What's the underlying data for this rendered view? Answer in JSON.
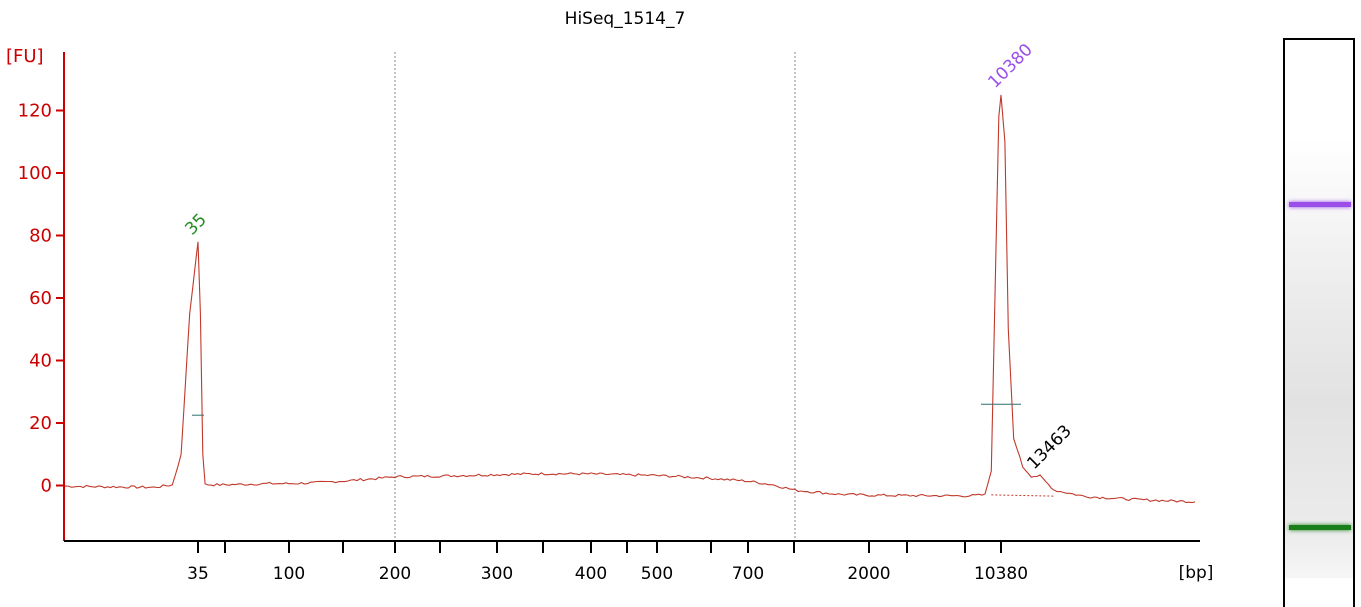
{
  "chart_data": {
    "type": "line",
    "title": "HiSeq_1514_7",
    "ylabel": "[FU]",
    "xlabel": "[bp]",
    "ylim": [
      -18,
      138
    ],
    "yticks": [
      0,
      20,
      40,
      60,
      80,
      100,
      120
    ],
    "xtick_labels": [
      "35",
      "100",
      "200",
      "300",
      "400",
      "500",
      "700",
      "2000",
      "10380"
    ],
    "minor_ticks_unlabeled": true,
    "grid_lines_at": [
      "200",
      "1000"
    ],
    "series": [
      {
        "points": [
          [
            22,
            -0.2
          ],
          [
            25,
            -0.4
          ],
          [
            28,
            -0.5
          ],
          [
            30,
            -0.6
          ],
          [
            32,
            0.2
          ],
          [
            33,
            10
          ],
          [
            34,
            55
          ],
          [
            35,
            78
          ],
          [
            36,
            55
          ],
          [
            37,
            10
          ],
          [
            38,
            0.3
          ],
          [
            45,
            0.2
          ],
          [
            60,
            0.4
          ],
          [
            80,
            0.6
          ],
          [
            100,
            0.6
          ],
          [
            120,
            0.9
          ],
          [
            150,
            1.6
          ],
          [
            180,
            2.3
          ],
          [
            200,
            2.8
          ],
          [
            250,
            3.1
          ],
          [
            300,
            3.5
          ],
          [
            350,
            3.8
          ],
          [
            400,
            3.7
          ],
          [
            450,
            3.4
          ],
          [
            500,
            3.2
          ],
          [
            600,
            2.4
          ],
          [
            700,
            1.4
          ],
          [
            850,
            0.2
          ],
          [
            1000,
            -1.5
          ],
          [
            1500,
            -2.8
          ],
          [
            2000,
            -3.1
          ],
          [
            3000,
            -3.2
          ],
          [
            5000,
            -3.3
          ],
          [
            7000,
            -3.3
          ],
          [
            8500,
            -3.0
          ],
          [
            9200,
            5
          ],
          [
            9700,
            70
          ],
          [
            10100,
            118
          ],
          [
            10380,
            125
          ],
          [
            10650,
            110
          ],
          [
            10900,
            50
          ],
          [
            11300,
            15
          ],
          [
            12000,
            6
          ],
          [
            12700,
            3
          ],
          [
            13463,
            3
          ],
          [
            14500,
            -1.5
          ],
          [
            17000,
            -3.5
          ],
          [
            22000,
            -4.5
          ],
          [
            30000,
            -5.2
          ]
        ]
      }
    ],
    "peaks": [
      {
        "label": "35",
        "x": 35,
        "y": 78,
        "color": "#228b22",
        "width_bar_y": 22.5
      },
      {
        "label": "10380",
        "x": 10380,
        "y": 125,
        "color": "#9b4fe8",
        "width_bar_y": 26
      },
      {
        "label": "13463",
        "x": 13463,
        "y": 3,
        "color": "#000000"
      }
    ]
  },
  "gel": {
    "bands": [
      {
        "label": "10380",
        "color": "#9b4fe8",
        "position": 0.285
      },
      {
        "label": "35",
        "color": "#1a7f1a",
        "position": 0.853
      }
    ]
  }
}
